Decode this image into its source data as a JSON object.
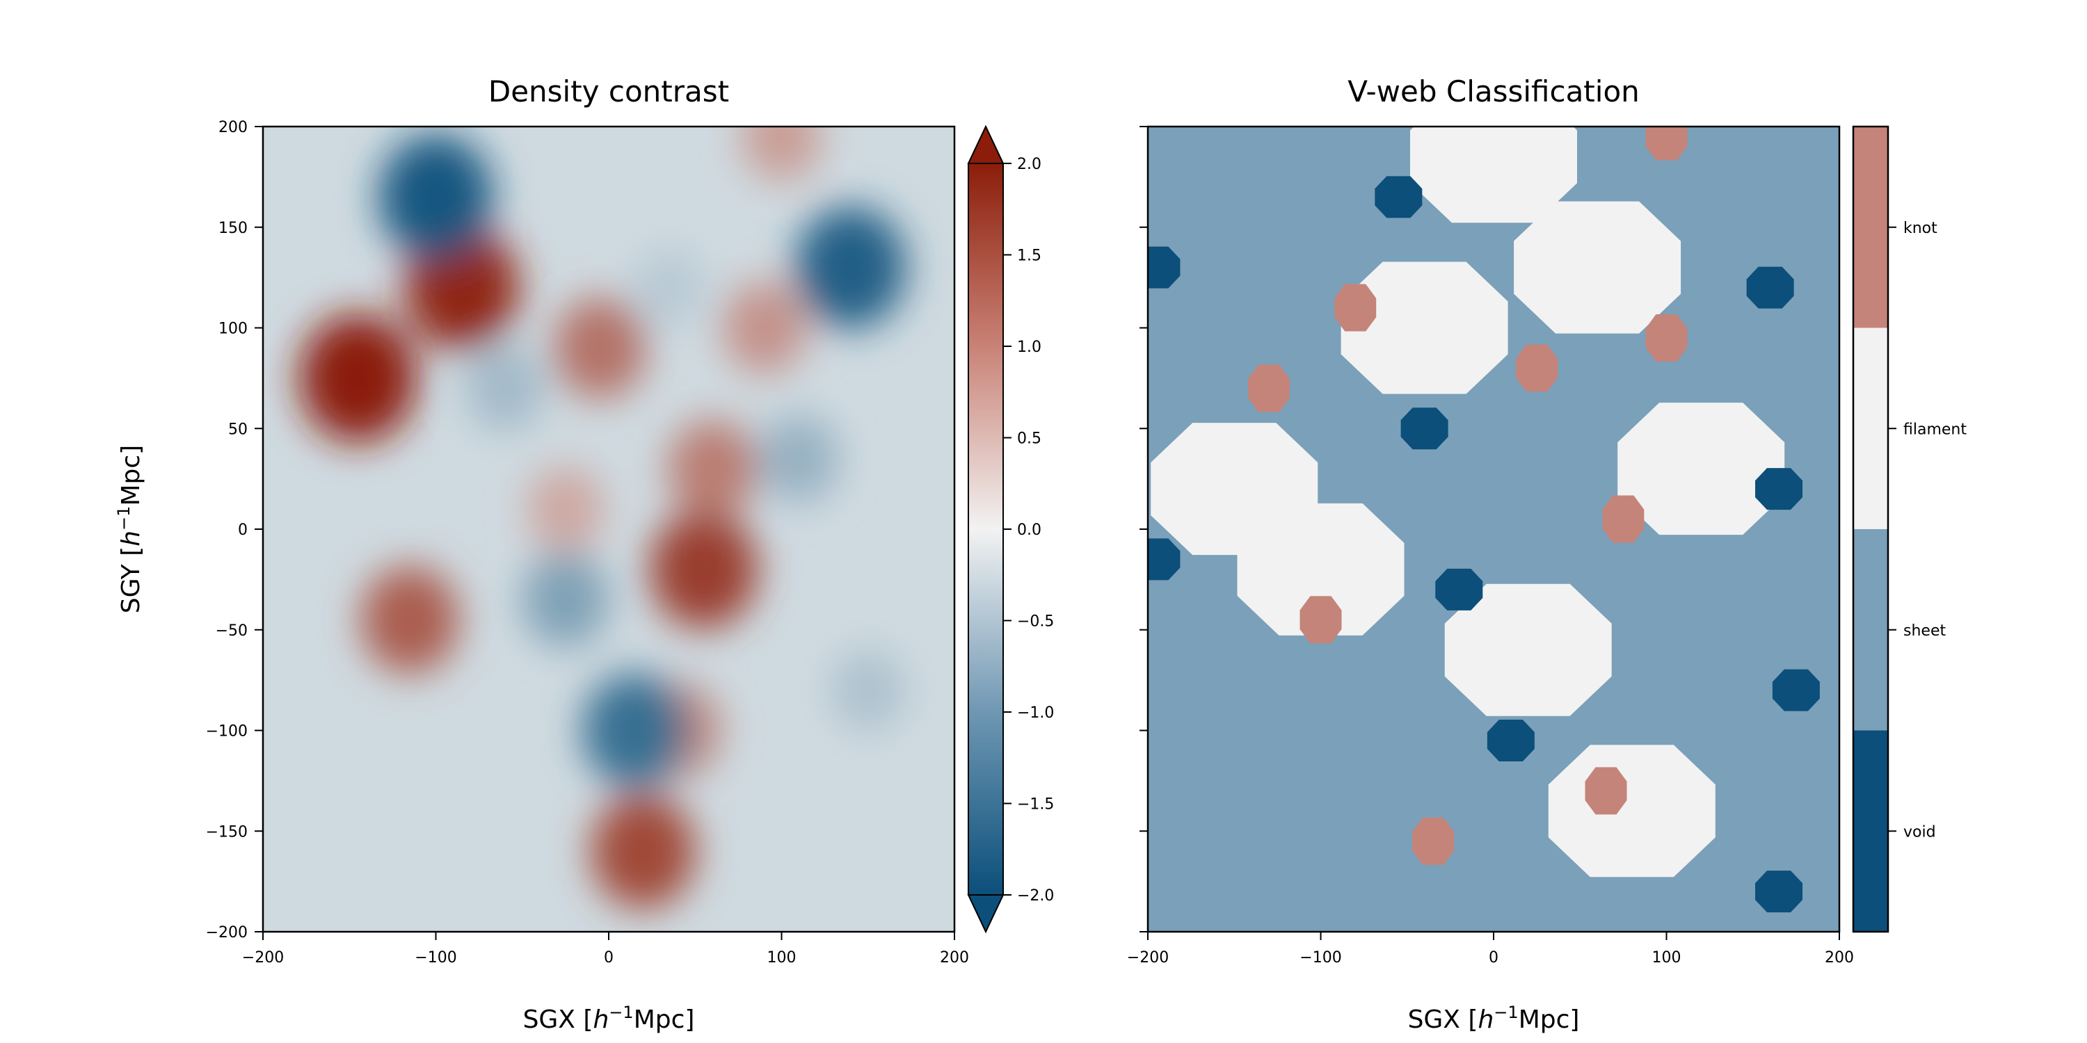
{
  "chart_data": [
    {
      "type": "heatmap",
      "title": "Density contrast",
      "xlabel": "SGX [h⁻¹Mpc]",
      "ylabel": "SGY [h⁻¹Mpc]",
      "xlim": [
        -200,
        200
      ],
      "ylim": [
        -200,
        200
      ],
      "x_ticks": [
        -200,
        -100,
        0,
        100,
        200
      ],
      "y_ticks": [
        -200,
        -150,
        -100,
        -50,
        0,
        50,
        100,
        150,
        200
      ],
      "x_tick_labels": [
        "−200",
        "−100",
        "0",
        "100",
        "200"
      ],
      "y_tick_labels": [
        "−200",
        "−150",
        "−100",
        "−50",
        "0",
        "50",
        "100",
        "150",
        "200"
      ],
      "colorbar": {
        "range": [
          -2.0,
          2.0
        ],
        "extend": "both",
        "ticks": [
          -2.0,
          -1.5,
          -1.0,
          -0.5,
          0.0,
          0.5,
          1.0,
          1.5,
          2.0
        ],
        "tick_labels": [
          "−2.0",
          "−1.5",
          "−1.0",
          "−0.5",
          "0.0",
          "0.5",
          "1.0",
          "1.5",
          "2.0"
        ],
        "colors": {
          "low": "#0b4f7a",
          "mid": "#f2f2f2",
          "high": "#8b1d0a"
        }
      },
      "features": [
        {
          "x": -145,
          "y": 75,
          "value": 2.0
        },
        {
          "x": -85,
          "y": 120,
          "value": 1.9
        },
        {
          "x": -115,
          "y": -45,
          "value": 1.4
        },
        {
          "x": -5,
          "y": 90,
          "value": 1.2
        },
        {
          "x": 55,
          "y": -20,
          "value": 1.7
        },
        {
          "x": 60,
          "y": 30,
          "value": 1.1
        },
        {
          "x": 20,
          "y": -160,
          "value": 1.6
        },
        {
          "x": 90,
          "y": 100,
          "value": 0.9
        },
        {
          "x": 100,
          "y": 195,
          "value": 0.8
        },
        {
          "x": -25,
          "y": 10,
          "value": 0.7
        },
        {
          "x": 40,
          "y": -100,
          "value": 1.0
        },
        {
          "x": -100,
          "y": 165,
          "value": -1.9
        },
        {
          "x": 140,
          "y": 130,
          "value": -1.8
        },
        {
          "x": 15,
          "y": -100,
          "value": -1.6
        },
        {
          "x": -25,
          "y": -35,
          "value": -1.0
        },
        {
          "x": 35,
          "y": 120,
          "value": -0.5
        },
        {
          "x": 110,
          "y": 35,
          "value": -0.8
        },
        {
          "x": -60,
          "y": 70,
          "value": -0.7
        },
        {
          "x": 150,
          "y": -80,
          "value": -0.6
        }
      ]
    },
    {
      "type": "heatmap",
      "title": "V-web Classification",
      "xlabel": "SGX [h⁻¹Mpc]",
      "xlim": [
        -200,
        200
      ],
      "ylim": [
        -200,
        200
      ],
      "x_ticks": [
        -200,
        -100,
        0,
        100,
        200
      ],
      "x_tick_labels": [
        "−200",
        "−100",
        "0",
        "100",
        "200"
      ],
      "colorbar": {
        "categories": [
          "void",
          "sheet",
          "filament",
          "knot"
        ],
        "colors": [
          "#0b4f7a",
          "#7ba0b9",
          "#f2f2f2",
          "#c4847a"
        ]
      },
      "regions": [
        {
          "class": "knot",
          "x": -130,
          "y": 70
        },
        {
          "class": "knot",
          "x": -100,
          "y": -45
        },
        {
          "class": "knot",
          "x": -80,
          "y": 110
        },
        {
          "class": "knot",
          "x": 25,
          "y": 80
        },
        {
          "class": "knot",
          "x": 75,
          "y": 5
        },
        {
          "class": "knot",
          "x": 100,
          "y": 95
        },
        {
          "class": "knot",
          "x": 65,
          "y": -130
        },
        {
          "class": "knot",
          "x": -35,
          "y": -155
        },
        {
          "class": "knot",
          "x": 100,
          "y": 195
        },
        {
          "class": "void",
          "x": 160,
          "y": 120
        },
        {
          "class": "void",
          "x": 165,
          "y": 20
        },
        {
          "class": "void",
          "x": 175,
          "y": -80
        },
        {
          "class": "void",
          "x": 165,
          "y": -180
        },
        {
          "class": "void",
          "x": -195,
          "y": 130
        },
        {
          "class": "void",
          "x": -195,
          "y": -15
        },
        {
          "class": "void",
          "x": -40,
          "y": 50
        },
        {
          "class": "void",
          "x": -20,
          "y": -30
        },
        {
          "class": "void",
          "x": 10,
          "y": -105
        },
        {
          "class": "void",
          "x": -55,
          "y": 165
        },
        {
          "class": "filament",
          "x": -150,
          "y": 20
        },
        {
          "class": "filament",
          "x": -40,
          "y": 100
        },
        {
          "class": "filament",
          "x": 20,
          "y": -60
        },
        {
          "class": "filament",
          "x": 80,
          "y": -140
        },
        {
          "class": "filament",
          "x": 0,
          "y": 185
        },
        {
          "class": "filament",
          "x": 60,
          "y": 130
        },
        {
          "class": "filament",
          "x": -100,
          "y": -20
        },
        {
          "class": "filament",
          "x": 120,
          "y": 30
        },
        {
          "class": "sheet",
          "x": -150,
          "y": 150
        },
        {
          "class": "sheet",
          "x": -160,
          "y": -140
        },
        {
          "class": "sheet",
          "x": 0,
          "y": 40
        },
        {
          "class": "sheet",
          "x": 130,
          "y": -40
        },
        {
          "class": "sheet",
          "x": 100,
          "y": 160
        }
      ]
    }
  ]
}
